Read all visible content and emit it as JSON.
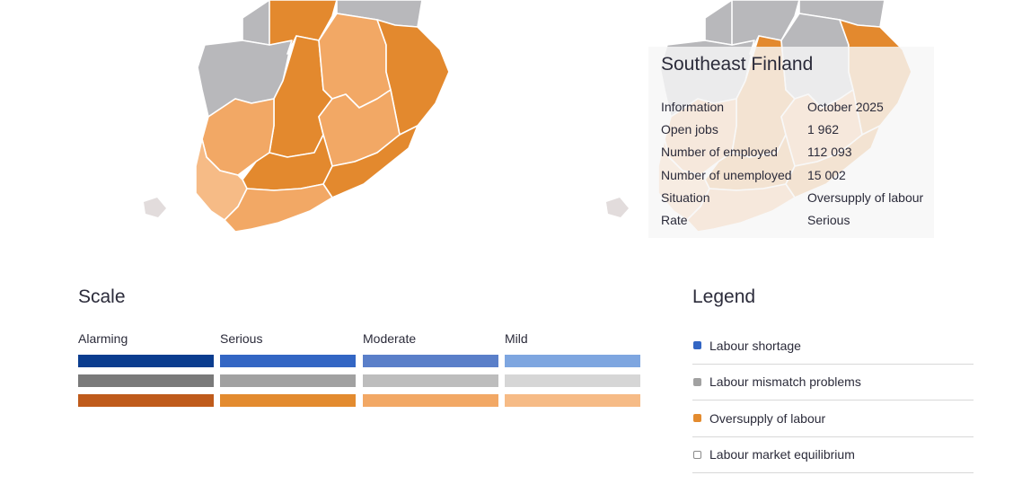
{
  "colors": {
    "alarming_blue": "#0b3d8f",
    "serious_blue": "#3366c4",
    "moderate_blue": "#5a7fc9",
    "mild_blue": "#7ea6e0",
    "alarming_gray": "#7a7a7a",
    "serious_gray": "#a1a1a1",
    "moderate_gray": "#bdbdbd",
    "mild_gray": "#d6d6d6",
    "alarming_orange": "#bf5b1b",
    "serious_orange": "#e38b2f",
    "moderate_orange": "#f2a865",
    "mild_orange": "#f6bb86",
    "equilibrium": "#ffffff"
  },
  "tooltip": {
    "title": "Southeast Finland",
    "rows": [
      {
        "key": "Information",
        "value": "October 2025"
      },
      {
        "key": "Open jobs",
        "value": "1 962"
      },
      {
        "key": "Number of employed",
        "value": "112 093"
      },
      {
        "key": "Number of unemployed",
        "value": "15 002"
      },
      {
        "key": "Situation",
        "value": "Oversupply of labour"
      },
      {
        "key": "Rate",
        "value": "Serious"
      }
    ]
  },
  "scale": {
    "title": "Scale",
    "levels": [
      "Alarming",
      "Serious",
      "Moderate",
      "Mild"
    ]
  },
  "legend": {
    "title": "Legend",
    "items": [
      {
        "label": "Labour shortage",
        "color": "#3366c4",
        "icon": "blue-dot"
      },
      {
        "label": "Labour mismatch problems",
        "color": "#a1a1a1",
        "icon": "gray-dot"
      },
      {
        "label": "Oversupply of labour",
        "color": "#e38b2f",
        "icon": "orange-dot"
      },
      {
        "label": "Labour market equilibrium",
        "color": "#ffffff",
        "icon": "hollow-square"
      }
    ]
  }
}
